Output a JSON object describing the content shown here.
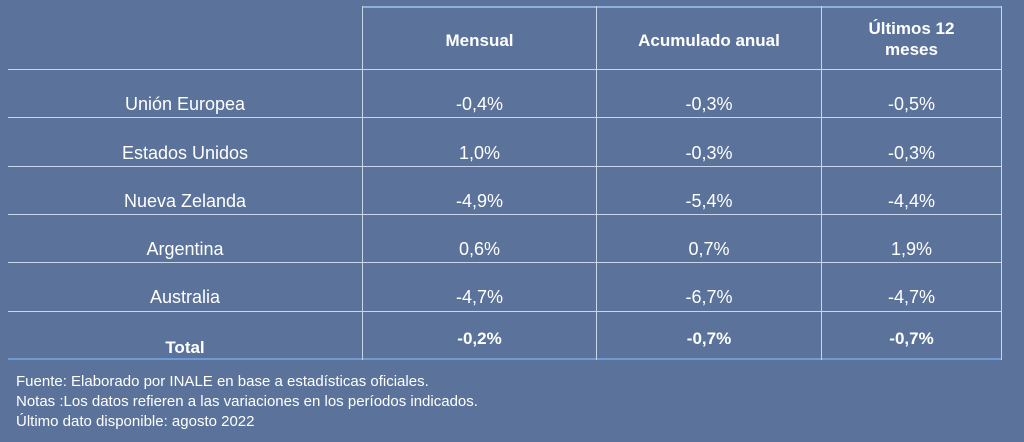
{
  "table": {
    "headers": [
      "",
      "Mensual",
      "Acumulado anual",
      "Últimos 12\nmeses"
    ],
    "rows": [
      {
        "label": "Unión Europea",
        "mensual": "-0,4%",
        "acumulado": "-0,3%",
        "ultimos": "-0,5%"
      },
      {
        "label": "Estados Unidos",
        "mensual": "1,0%",
        "acumulado": "-0,3%",
        "ultimos": "-0,3%"
      },
      {
        "label": "Nueva Zelanda",
        "mensual": "-4,9%",
        "acumulado": "-5,4%",
        "ultimos": "-4,4%"
      },
      {
        "label": "Argentina",
        "mensual": "0,6%",
        "acumulado": "0,7%",
        "ultimos": "1,9%"
      },
      {
        "label": "Australia",
        "mensual": "-4,7%",
        "acumulado": "-6,7%",
        "ultimos": "-4,7%"
      }
    ],
    "total": {
      "label": "Total",
      "mensual": "-0,2%",
      "acumulado": "-0,7%",
      "ultimos": "-0,7%"
    }
  },
  "footer": {
    "fuente": "Fuente: Elaborado por INALE en base a estadísticas oficiales.",
    "notas": "Notas :Los datos refieren a las variaciones en los períodos indicados.",
    "ultimo": "Último dato disponible: agosto 2022"
  }
}
